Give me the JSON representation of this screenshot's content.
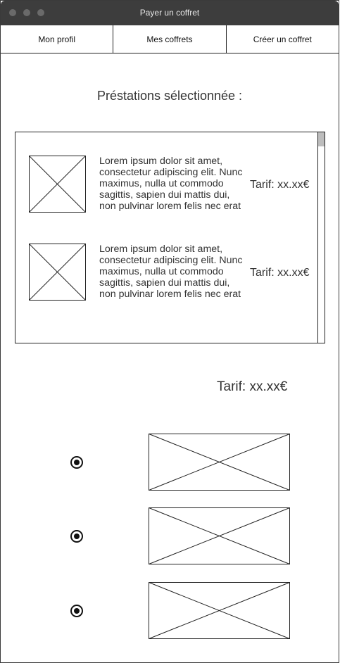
{
  "window": {
    "title": "Payer un coffret"
  },
  "tabs": [
    {
      "label": "Mon profil"
    },
    {
      "label": "Mes coffrets"
    },
    {
      "label": "Créer un coffret"
    }
  ],
  "main": {
    "heading": "Préstations sélectionnée :",
    "items": [
      {
        "description": "Lorem ipsum dolor sit amet, consectetur adipiscing elit. Nunc maximus, nulla ut commodo sagittis, sapien dui mattis dui, non pulvinar lorem felis nec erat",
        "price": "Tarif: xx.xx€"
      },
      {
        "description": "Lorem ipsum dolor sit amet, consectetur adipiscing elit. Nunc maximus, nulla ut commodo sagittis, sapien dui mattis dui, non pulvinar lorem felis nec erat",
        "price": "Tarif: xx.xx€"
      }
    ],
    "total": "Tarif: xx.xx€",
    "payment_options": [
      {
        "selected": true
      },
      {
        "selected": true
      },
      {
        "selected": true
      }
    ]
  },
  "colors": {
    "titlebar": "#3d3d3d",
    "border": "#222222",
    "scroll_thumb": "#bdbdbd"
  }
}
